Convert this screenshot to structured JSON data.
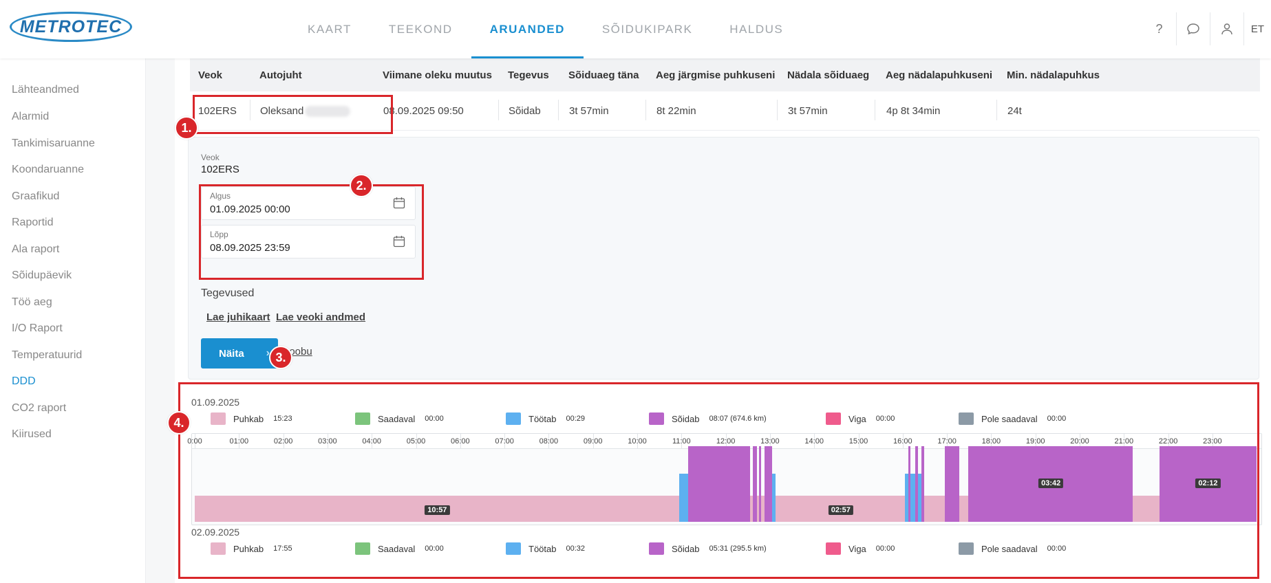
{
  "brand": {
    "logo_text": "METROTEC"
  },
  "nav": {
    "items": [
      {
        "label": "KAART",
        "active": false
      },
      {
        "label": "TEEKOND",
        "active": false
      },
      {
        "label": "ARUANDED",
        "active": true
      },
      {
        "label": "SÕIDUKIPARK",
        "active": false
      },
      {
        "label": "HALDUS",
        "active": false
      }
    ],
    "lang": "ET",
    "icons": [
      "help-icon",
      "chat-icon",
      "user-icon"
    ]
  },
  "sidebar": {
    "items": [
      {
        "label": "Lähteandmed",
        "active": false
      },
      {
        "label": "Alarmid",
        "active": false
      },
      {
        "label": "Tankimisaruanne",
        "active": false
      },
      {
        "label": "Koondaruanne",
        "active": false
      },
      {
        "label": "Graafikud",
        "active": false
      },
      {
        "label": "Raportid",
        "active": false
      },
      {
        "label": "Ala raport",
        "active": false
      },
      {
        "label": "Sõidupäevik",
        "active": false
      },
      {
        "label": "Töö aeg",
        "active": false
      },
      {
        "label": "I/O Raport",
        "active": false
      },
      {
        "label": "Temperatuurid",
        "active": false
      },
      {
        "label": "DDD",
        "active": true
      },
      {
        "label": "CO2 raport",
        "active": false
      },
      {
        "label": "Kiirused",
        "active": false
      }
    ]
  },
  "table": {
    "headers": [
      "Veok",
      "Autojuht",
      "Viimane oleku muutus",
      "Tegevus",
      "Sõiduaeg täna",
      "Aeg järgmise puhkuseni",
      "Nädala sõiduaeg",
      "Aeg nädalapuhkuseni",
      "Min. nädalapuhkus"
    ],
    "row": {
      "veok": "102ERS",
      "driver": "Oleksand",
      "last_change": "08.09.2025 09:50",
      "activity": "Sõidab",
      "drive_today": "3t 57min",
      "to_next_rest": "8t 22min",
      "week_drive": "3t 57min",
      "to_week_rest": "4p 8t 34min",
      "min_week_rest": "24t"
    }
  },
  "form": {
    "vehicle_label": "Veok",
    "vehicle_value": "102ERS",
    "start_label": "Algus",
    "start_value": "01.09.2025 00:00",
    "end_label": "Lõpp",
    "end_value": "08.09.2025 23:59",
    "activities_label": "Tegevused",
    "link_driver_card": "Lae juhikaart",
    "link_vehicle_data": "Lae veoki andmed",
    "show_button": "Näita",
    "cancel_link": "Loobu"
  },
  "legend_colors": {
    "rest": "#e8b4c8",
    "available": "#7cc47c",
    "work": "#5db0f0",
    "driving": "#b864c8",
    "error": "#ef5b8c",
    "unavailable": "#8c9aa6"
  },
  "days": [
    {
      "date": "01.09.2025",
      "legend": [
        {
          "name": "Puhkab",
          "value": "15:23",
          "color": "#e8b4c8"
        },
        {
          "name": "Saadaval",
          "value": "00:00",
          "color": "#7cc47c"
        },
        {
          "name": "Töötab",
          "value": "00:29",
          "color": "#5db0f0"
        },
        {
          "name": "Sõidab",
          "value": "08:07 (674.6 km)",
          "color": "#b864c8"
        },
        {
          "name": "Viga",
          "value": "00:00",
          "color": "#ef5b8c"
        },
        {
          "name": "Pole saadaval",
          "value": "00:00",
          "color": "#8c9aa6"
        }
      ],
      "hour_labels": [
        "0:00",
        "01:00",
        "02:00",
        "03:00",
        "04:00",
        "05:00",
        "06:00",
        "07:00",
        "08:00",
        "09:00",
        "10:00",
        "11:00",
        "12:00",
        "13:00",
        "14:00",
        "15:00",
        "16:00",
        "17:00",
        "18:00",
        "19:00",
        "20:00",
        "21:00",
        "22:00",
        "23:00"
      ],
      "segments": [
        {
          "type": "rest",
          "start": 0.0,
          "end": 10.95
        },
        {
          "type": "work",
          "start": 10.95,
          "end": 11.15
        },
        {
          "type": "driving",
          "start": 11.15,
          "end": 12.55
        },
        {
          "type": "rest",
          "start": 12.55,
          "end": 12.62
        },
        {
          "type": "driving",
          "start": 12.62,
          "end": 12.7
        },
        {
          "type": "rest",
          "start": 12.7,
          "end": 12.75
        },
        {
          "type": "driving",
          "start": 12.75,
          "end": 12.8
        },
        {
          "type": "rest",
          "start": 12.8,
          "end": 12.88
        },
        {
          "type": "driving",
          "start": 12.88,
          "end": 13.05
        },
        {
          "type": "work",
          "start": 13.05,
          "end": 13.12
        },
        {
          "type": "rest",
          "start": 13.12,
          "end": 16.05
        },
        {
          "type": "work",
          "start": 16.05,
          "end": 16.12
        },
        {
          "type": "driving",
          "start": 16.12,
          "end": 16.18
        },
        {
          "type": "work",
          "start": 16.18,
          "end": 16.28
        },
        {
          "type": "driving",
          "start": 16.28,
          "end": 16.35
        },
        {
          "type": "work",
          "start": 16.35,
          "end": 16.42
        },
        {
          "type": "driving",
          "start": 16.42,
          "end": 16.48
        },
        {
          "type": "rest",
          "start": 16.48,
          "end": 16.95
        },
        {
          "type": "driving",
          "start": 16.95,
          "end": 17.28
        },
        {
          "type": "rest",
          "start": 17.28,
          "end": 17.48
        },
        {
          "type": "driving",
          "start": 17.48,
          "end": 21.2
        },
        {
          "type": "rest",
          "start": 21.2,
          "end": 21.8
        },
        {
          "type": "driving",
          "start": 21.8,
          "end": 24.0
        }
      ],
      "duration_tags": [
        {
          "label": "10:57",
          "at": 5.48,
          "type": "rest"
        },
        {
          "label": "02:57",
          "at": 14.6,
          "type": "rest"
        },
        {
          "label": "03:42",
          "at": 19.35,
          "type": "driving"
        },
        {
          "label": "02:12",
          "at": 22.9,
          "type": "driving"
        }
      ]
    },
    {
      "date": "02.09.2025",
      "legend": [
        {
          "name": "Puhkab",
          "value": "17:55",
          "color": "#e8b4c8"
        },
        {
          "name": "Saadaval",
          "value": "00:00",
          "color": "#7cc47c"
        },
        {
          "name": "Töötab",
          "value": "00:32",
          "color": "#5db0f0"
        },
        {
          "name": "Sõidab",
          "value": "05:31 (295.5 km)",
          "color": "#b864c8"
        },
        {
          "name": "Viga",
          "value": "00:00",
          "color": "#ef5b8c"
        },
        {
          "name": "Pole saadaval",
          "value": "00:00",
          "color": "#8c9aa6"
        }
      ]
    }
  ],
  "annotations": [
    "1.",
    "2.",
    "3.",
    "4."
  ]
}
